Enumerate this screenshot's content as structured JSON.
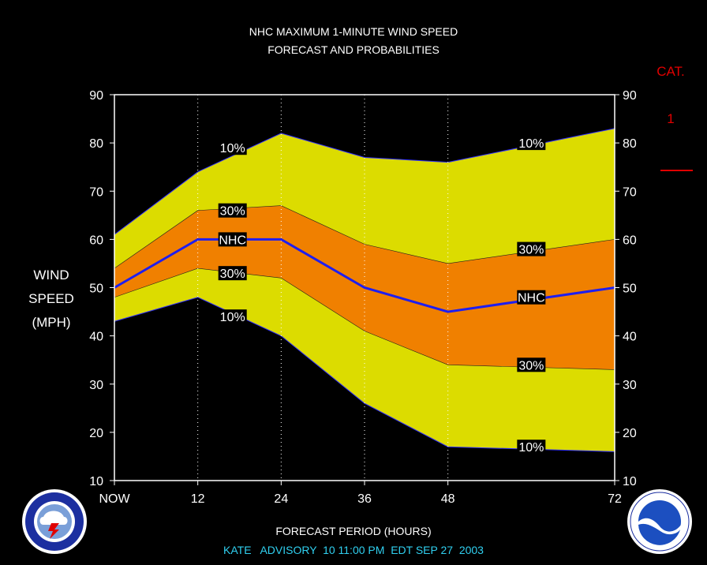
{
  "title_line1": "NHC MAXIMUM 1-MINUTE WIND SPEED",
  "title_line2": "FORECAST AND PROBABILITIES",
  "ylabel": [
    "WIND",
    "SPEED",
    "(MPH)"
  ],
  "cat_label": "CAT.",
  "cat_value": "1",
  "xlabel": "FORECAST PERIOD (HOURS)",
  "advisory": "KATE   ADVISORY  10 11:00 PM  EDT SEP 27  2003",
  "colors": {
    "background": "#000000",
    "band_10": "#dcdc00",
    "band_30": "#f08000",
    "nhc_line": "#1e1ef0",
    "cat_text": "#e00000",
    "advisory_text": "#30d0f0"
  },
  "chart_data": {
    "type": "area",
    "x": [
      0,
      12,
      24,
      36,
      48,
      72
    ],
    "x_tick_labels": [
      "NOW",
      "12",
      "24",
      "36",
      "48",
      "72"
    ],
    "xlim": [
      0,
      72
    ],
    "ylim": [
      10,
      90
    ],
    "y_ticks": [
      10,
      20,
      30,
      40,
      50,
      60,
      70,
      80,
      90
    ],
    "grid": "vertical dotted at forecast hours",
    "series": [
      {
        "name": "10%",
        "role": "upper",
        "values": [
          61,
          74,
          82,
          77,
          76,
          83
        ]
      },
      {
        "name": "30%",
        "role": "upper",
        "values": [
          54,
          66,
          67,
          59,
          55,
          60
        ]
      },
      {
        "name": "NHC",
        "role": "forecast",
        "values": [
          50,
          60,
          60,
          50,
          45,
          50
        ]
      },
      {
        "name": "30%",
        "role": "lower",
        "values": [
          48,
          54,
          52,
          41,
          34,
          33
        ]
      },
      {
        "name": "10%",
        "role": "lower",
        "values": [
          43,
          48,
          40,
          26,
          17,
          16
        ]
      }
    ],
    "annotations": [
      {
        "text": "10%",
        "x": 17,
        "y": 79
      },
      {
        "text": "30%",
        "x": 17,
        "y": 66
      },
      {
        "text": "NHC",
        "x": 17,
        "y": 60
      },
      {
        "text": "30%",
        "x": 17,
        "y": 53
      },
      {
        "text": "10%",
        "x": 17,
        "y": 44
      },
      {
        "text": "10%",
        "x": 60,
        "y": 80
      },
      {
        "text": "30%",
        "x": 60,
        "y": 58
      },
      {
        "text": "NHC",
        "x": 60,
        "y": 48
      },
      {
        "text": "30%",
        "x": 60,
        "y": 34
      },
      {
        "text": "10%",
        "x": 60,
        "y": 17
      }
    ]
  }
}
